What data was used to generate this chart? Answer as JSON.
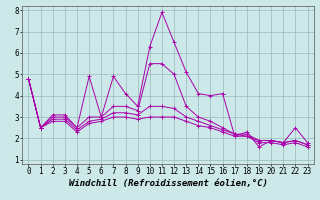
{
  "xlabel": "Windchill (Refroidissement éolien,°C)",
  "bg_color": "#cce8e8",
  "line_color": "#aa00aa",
  "grid_color": "#99bbbb",
  "xlim": [
    -0.5,
    23.5
  ],
  "ylim": [
    0.8,
    8.2
  ],
  "xticks": [
    0,
    1,
    2,
    3,
    4,
    5,
    6,
    7,
    8,
    9,
    10,
    11,
    12,
    13,
    14,
    15,
    16,
    17,
    18,
    19,
    20,
    21,
    22,
    23
  ],
  "yticks": [
    1,
    2,
    3,
    4,
    5,
    6,
    7,
    8
  ],
  "series": [
    [
      4.8,
      2.5,
      3.1,
      3.1,
      2.5,
      4.9,
      3.0,
      4.9,
      4.1,
      3.5,
      6.3,
      7.9,
      6.5,
      5.1,
      4.1,
      4.0,
      4.1,
      2.1,
      2.3,
      1.6,
      1.9,
      1.8,
      2.5,
      1.8
    ],
    [
      4.8,
      2.5,
      3.0,
      3.0,
      2.5,
      3.0,
      3.0,
      3.5,
      3.5,
      3.3,
      5.5,
      5.5,
      5.0,
      3.5,
      3.0,
      2.8,
      2.5,
      2.2,
      2.2,
      1.9,
      1.9,
      1.8,
      1.9,
      1.7
    ],
    [
      4.8,
      2.5,
      2.9,
      2.9,
      2.4,
      2.8,
      2.9,
      3.2,
      3.2,
      3.1,
      3.5,
      3.5,
      3.4,
      3.0,
      2.8,
      2.6,
      2.4,
      2.2,
      2.1,
      1.9,
      1.9,
      1.8,
      1.9,
      1.7
    ],
    [
      4.8,
      2.5,
      2.8,
      2.8,
      2.3,
      2.7,
      2.8,
      3.0,
      3.0,
      2.9,
      3.0,
      3.0,
      3.0,
      2.8,
      2.6,
      2.5,
      2.3,
      2.1,
      2.1,
      1.8,
      1.8,
      1.7,
      1.8,
      1.6
    ]
  ],
  "xlabel_fontsize": 6.5,
  "tick_fontsize": 5.5
}
